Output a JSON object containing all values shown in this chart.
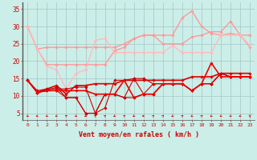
{
  "xlabel": "Vent moyen/en rafales ( km/h )",
  "bg_color": "#cceee8",
  "grid_color": "#aacccc",
  "x": [
    0,
    1,
    2,
    3,
    4,
    5,
    6,
    7,
    8,
    9,
    10,
    11,
    12,
    13,
    14,
    15,
    16,
    17,
    18,
    19,
    20,
    21,
    22,
    23
  ],
  "series": [
    {
      "data": [
        30.0,
        23.5,
        24.0,
        24.0,
        24.0,
        24.0,
        24.0,
        24.0,
        24.0,
        24.0,
        25.0,
        26.5,
        27.5,
        27.5,
        27.5,
        27.5,
        32.5,
        34.5,
        30.0,
        28.0,
        27.5,
        28.0,
        27.5,
        24.0
      ],
      "color": "#ff9999",
      "lw": 1.0,
      "alpha": 1.0
    },
    {
      "data": [
        30.0,
        23.5,
        19.0,
        19.0,
        19.0,
        19.0,
        19.0,
        19.0,
        19.0,
        23.0,
        24.0,
        26.5,
        27.5,
        27.5,
        25.0,
        25.0,
        25.0,
        27.0,
        27.5,
        28.5,
        28.5,
        31.5,
        27.5,
        27.5
      ],
      "color": "#ff9999",
      "lw": 1.0,
      "alpha": 1.0
    },
    {
      "data": [
        30.0,
        23.5,
        18.5,
        17.5,
        12.0,
        16.5,
        17.5,
        26.0,
        26.5,
        22.5,
        22.5,
        22.5,
        22.5,
        22.5,
        22.5,
        24.5,
        22.5,
        22.5,
        22.5,
        22.5,
        27.5,
        27.5,
        27.5,
        24.5
      ],
      "color": "#ffbbbb",
      "lw": 1.0,
      "alpha": 1.0
    },
    {
      "data": [
        14.5,
        11.0,
        12.0,
        13.0,
        10.5,
        13.0,
        13.0,
        13.5,
        13.5,
        13.5,
        14.5,
        14.5,
        14.5,
        14.5,
        14.5,
        14.5,
        14.5,
        15.5,
        15.5,
        15.5,
        16.5,
        16.5,
        16.5,
        16.5
      ],
      "color": "#dd0000",
      "lw": 1.2,
      "alpha": 1.0
    },
    {
      "data": [
        14.5,
        11.0,
        11.5,
        12.5,
        9.5,
        9.5,
        5.0,
        5.0,
        10.5,
        10.5,
        9.5,
        15.0,
        15.0,
        13.5,
        13.5,
        13.5,
        13.5,
        11.5,
        13.5,
        13.5,
        16.5,
        15.5,
        15.5,
        15.5
      ],
      "color": "#cc0000",
      "lw": 0.8,
      "alpha": 1.0
    },
    {
      "data": [
        14.5,
        11.0,
        11.5,
        11.5,
        9.5,
        9.5,
        5.0,
        5.0,
        10.5,
        10.5,
        9.5,
        9.5,
        10.5,
        10.5,
        13.5,
        13.5,
        13.5,
        11.5,
        13.5,
        13.5,
        16.5,
        15.5,
        15.5,
        15.5
      ],
      "color": "#cc0000",
      "lw": 0.8,
      "alpha": 1.0
    },
    {
      "data": [
        14.5,
        11.5,
        12.0,
        12.0,
        12.0,
        12.5,
        12.5,
        5.0,
        6.5,
        14.5,
        14.5,
        15.0,
        10.5,
        13.5,
        13.5,
        13.5,
        13.5,
        11.5,
        13.5,
        13.5,
        16.5,
        15.5,
        15.5,
        15.5
      ],
      "color": "#cc0000",
      "lw": 0.8,
      "alpha": 1.0
    },
    {
      "data": [
        14.5,
        11.0,
        11.5,
        11.5,
        11.5,
        11.5,
        11.5,
        10.5,
        10.5,
        10.5,
        14.5,
        9.5,
        10.5,
        10.5,
        13.5,
        13.5,
        13.5,
        11.5,
        13.5,
        19.5,
        15.5,
        15.5,
        15.5,
        15.5
      ],
      "color": "#ee0000",
      "lw": 1.2,
      "alpha": 1.0
    }
  ],
  "arrow_angles": [
    225,
    202,
    225,
    202,
    135,
    315,
    225,
    45,
    45,
    225,
    45,
    225,
    180,
    45,
    45,
    225,
    45,
    225,
    45,
    225,
    225,
    225,
    202,
    270
  ],
  "ylim": [
    3,
    37
  ],
  "yticks": [
    5,
    10,
    15,
    20,
    25,
    30,
    35
  ],
  "xticks": [
    0,
    1,
    2,
    3,
    4,
    5,
    6,
    7,
    8,
    9,
    10,
    11,
    12,
    13,
    14,
    15,
    16,
    17,
    18,
    19,
    20,
    21,
    22,
    23
  ]
}
